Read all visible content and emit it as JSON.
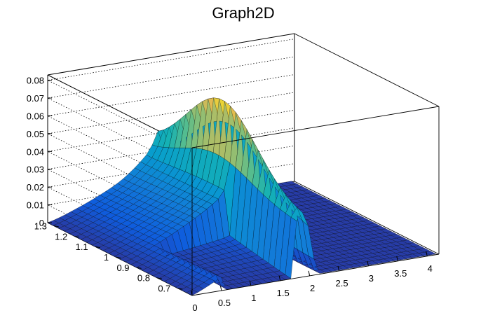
{
  "chart_data": {
    "type": "surface",
    "title": "Graph2D",
    "xlabel": "",
    "ylabel": "",
    "zlabel": "",
    "x_ticks": [
      "0",
      "0.5",
      "1",
      "1.5",
      "2",
      "2.5",
      "3",
      "3.5",
      "4"
    ],
    "y_ticks": [
      "0.7",
      "0.8",
      "0.9",
      "1",
      "1.1",
      "1.2",
      "1.3"
    ],
    "z_ticks": [
      "0",
      "0.01",
      "0.02",
      "0.03",
      "0.04",
      "0.05",
      "0.06",
      "0.07",
      "0.08"
    ],
    "xlim": [
      0,
      4.2
    ],
    "ylim": [
      0.63,
      1.33
    ],
    "zlim": [
      0,
      0.083
    ],
    "grid": true,
    "colormap": "parula",
    "colors": {
      "frame": "#000000",
      "grid": "#000000",
      "mesh": "#000000",
      "background": "#ffffff"
    },
    "description_points": [
      {
        "x": 0.0,
        "y": 1.3,
        "z": 0.0
      },
      {
        "x": 1.0,
        "y": 1.3,
        "z": 0.02
      },
      {
        "x": 1.8,
        "y": 1.3,
        "z": 0.046
      },
      {
        "x": 1.95,
        "y": 1.0,
        "z": 0.078
      },
      {
        "x": 1.95,
        "y": 0.7,
        "z": 0.0
      },
      {
        "x": 1.0,
        "y": 0.7,
        "z": 0.032
      },
      {
        "x": 0.5,
        "y": 0.9,
        "z": 0.0
      },
      {
        "x": 3.0,
        "y": 1.0,
        "z": 0.0
      },
      {
        "x": 4.0,
        "y": 1.3,
        "z": 0.0
      }
    ]
  }
}
